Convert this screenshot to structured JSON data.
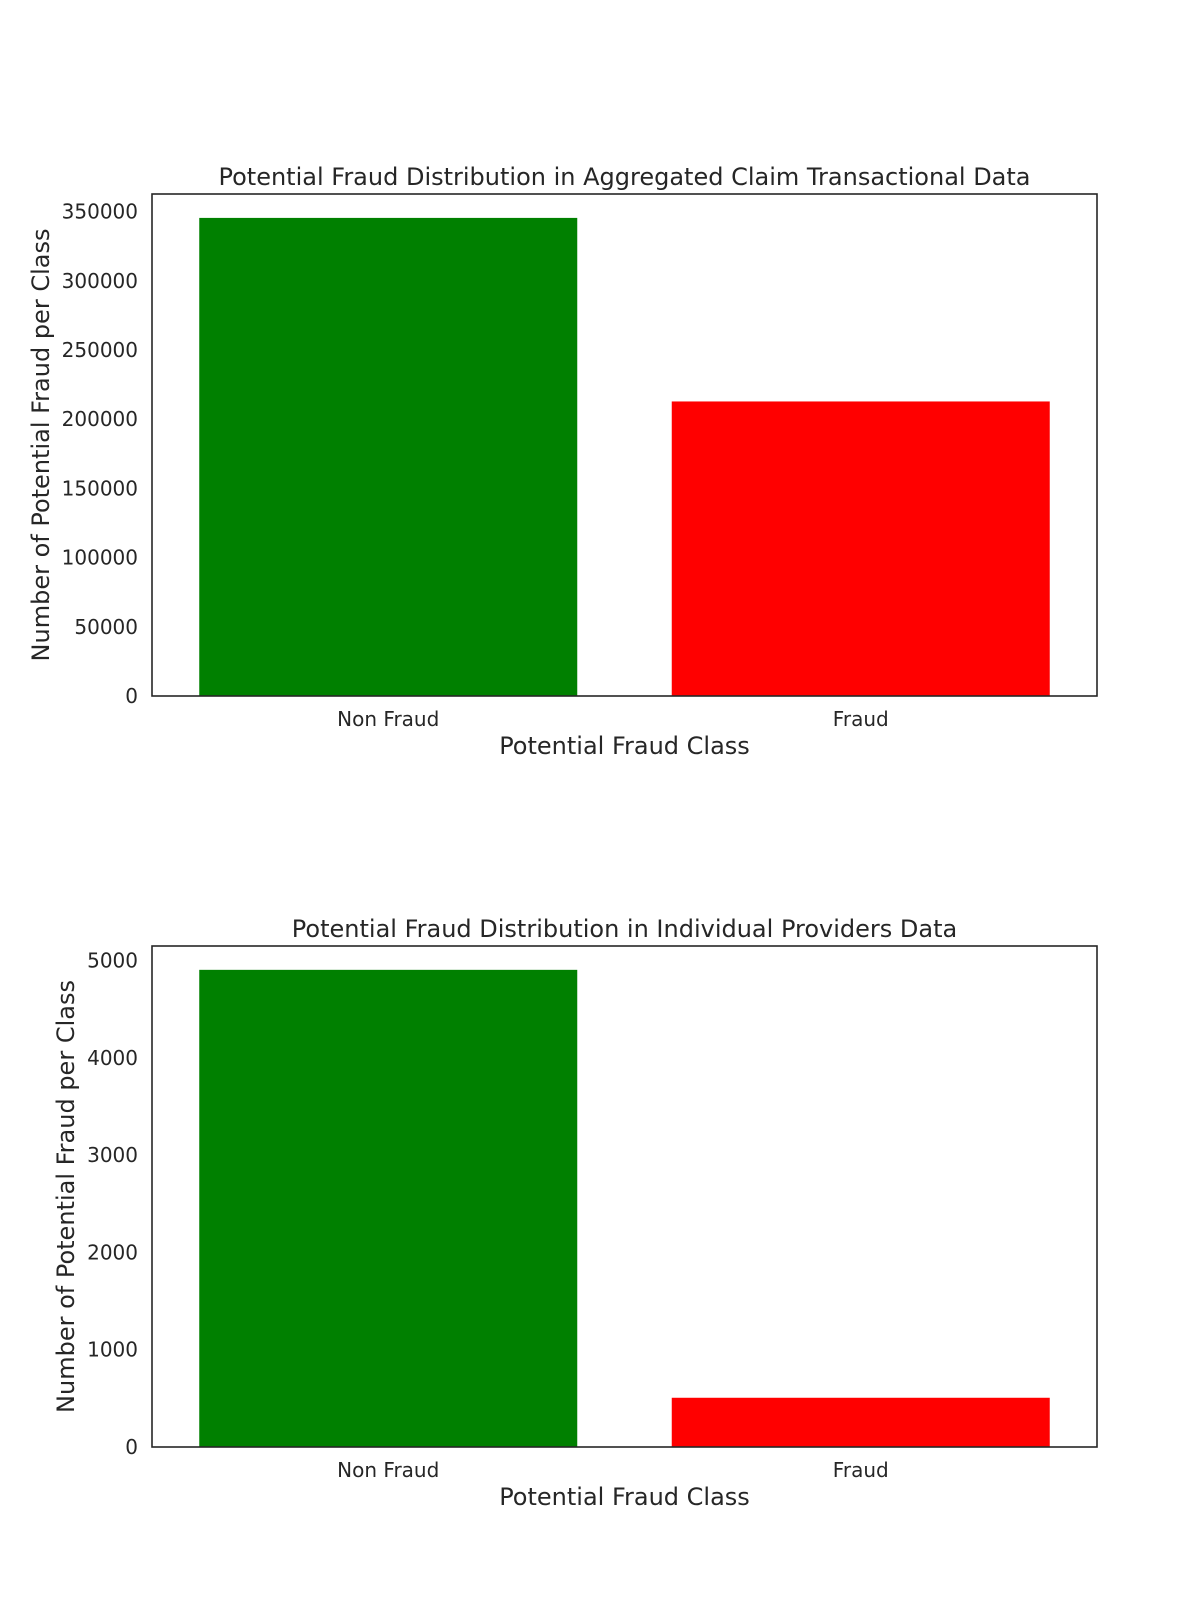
{
  "chart_data": [
    {
      "type": "bar",
      "title": "Potential Fraud Distribution in Aggregated Claim Transactional Data",
      "xlabel": "Potential Fraud Class",
      "ylabel": "Number of Potential Fraud per Class",
      "categories": [
        "Non Fraud",
        "Fraud"
      ],
      "values": [
        345415,
        212796
      ],
      "colors": [
        "#008000",
        "#ff0000"
      ],
      "ylim": [
        0,
        362685
      ],
      "yticks": [
        0,
        50000,
        100000,
        150000,
        200000,
        250000,
        300000,
        350000
      ],
      "grid": false,
      "legend": "none"
    },
    {
      "type": "bar",
      "title": "Potential Fraud Distribution in Individual Providers Data",
      "xlabel": "Potential Fraud Class",
      "ylabel": "Number of Potential Fraud per Class",
      "categories": [
        "Non Fraud",
        "Fraud"
      ],
      "values": [
        4904,
        506
      ],
      "colors": [
        "#008000",
        "#ff0000"
      ],
      "ylim": [
        0,
        5149
      ],
      "yticks": [
        0,
        1000,
        2000,
        3000,
        4000,
        5000
      ],
      "grid": false,
      "legend": "none"
    }
  ]
}
